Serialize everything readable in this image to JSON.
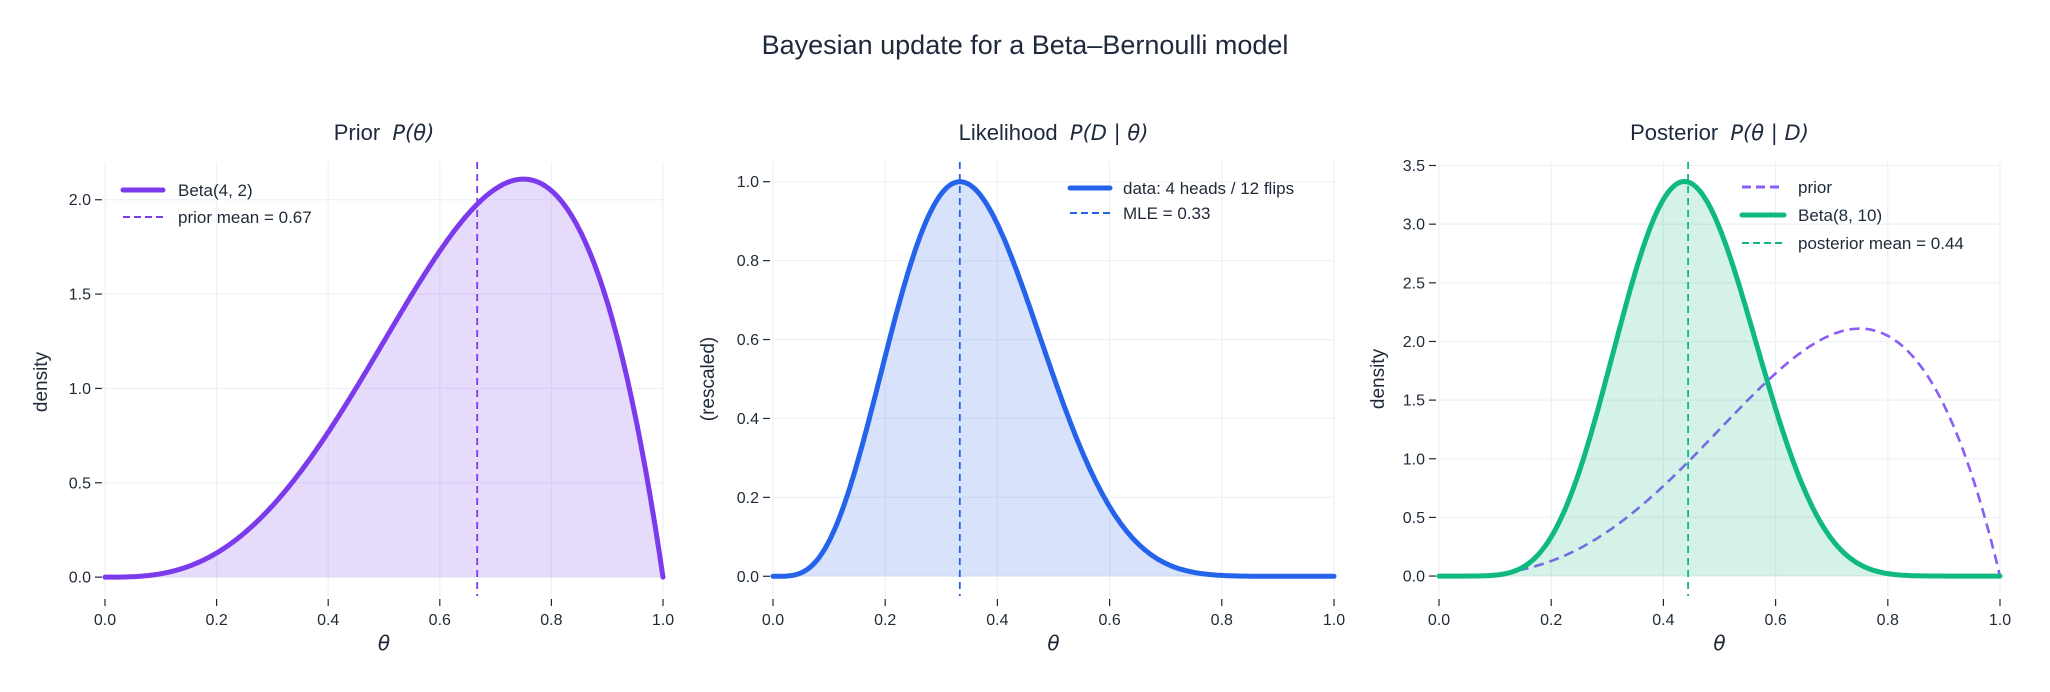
{
  "figure": {
    "suptitle": "Bayesian update for a Beta–Bernoulli model",
    "colors": {
      "prior": "#7c3aed",
      "prior_dashed": "#8b5cf6",
      "likelihood": "#2563eb",
      "posterior": "#10b981",
      "text": "#1f2937",
      "grid": "#eef2f7"
    }
  },
  "panels": [
    {
      "title_text": "Prior",
      "title_math": "P(θ)",
      "ylabel": "density",
      "xlabel": "θ",
      "legend": [
        {
          "label": "Beta(4, 2)",
          "style": "solid"
        },
        {
          "label": "prior mean = 0.67",
          "style": "dashed"
        }
      ]
    },
    {
      "title_text": "Likelihood",
      "title_math": "P(D | θ)",
      "ylabel": "(rescaled)",
      "xlabel": "θ",
      "legend": [
        {
          "label": "data: 4 heads / 12 flips",
          "style": "solid"
        },
        {
          "label": "MLE = 0.33",
          "style": "dashed"
        }
      ]
    },
    {
      "title_text": "Posterior",
      "title_math": "P(θ | D)",
      "ylabel": "density",
      "xlabel": "θ",
      "legend": [
        {
          "label": "prior",
          "style": "dashed"
        },
        {
          "label": "Beta(8, 10)",
          "style": "solid"
        },
        {
          "label": "posterior mean = 0.44",
          "style": "dashed"
        }
      ]
    }
  ],
  "chart_data": [
    {
      "type": "area",
      "title": "Prior P(θ)",
      "xlabel": "θ",
      "ylabel": "density",
      "xlim": [
        0,
        1
      ],
      "ylim": [
        -0.1,
        2.2
      ],
      "xticks": [
        "0.0",
        "0.2",
        "0.4",
        "0.6",
        "0.8",
        "1.0"
      ],
      "yticks": [
        "0.0",
        "0.5",
        "1.0",
        "1.5",
        "2.0"
      ],
      "grid": true,
      "legend_position": "upper left",
      "series": [
        {
          "name": "Beta(4, 2)",
          "distribution": "beta",
          "alpha": 4,
          "beta": 2,
          "peak": {
            "x": 0.75,
            "y": 2.11
          },
          "filled": true,
          "color": "#7c3aed"
        },
        {
          "name": "prior mean = 0.67",
          "type": "vline",
          "x": 0.667,
          "style": "dashed",
          "color": "#7c3aed"
        }
      ]
    },
    {
      "type": "area",
      "title": "Likelihood P(D | θ)",
      "xlabel": "θ",
      "ylabel": "(rescaled)",
      "xlim": [
        0,
        1
      ],
      "ylim": [
        -0.05,
        1.05
      ],
      "xticks": [
        "0.0",
        "0.2",
        "0.4",
        "0.6",
        "0.8",
        "1.0"
      ],
      "yticks": [
        "0.0",
        "0.2",
        "0.4",
        "0.6",
        "0.8",
        "1.0"
      ],
      "grid": true,
      "legend_position": "upper right",
      "series": [
        {
          "name": "data: 4 heads / 12 flips",
          "distribution": "bernoulli_likelihood",
          "heads": 4,
          "flips": 12,
          "rescaled_max": 1.0,
          "peak": {
            "x": 0.333,
            "y": 1.0
          },
          "filled": true,
          "color": "#2563eb"
        },
        {
          "name": "MLE = 0.33",
          "type": "vline",
          "x": 0.333,
          "style": "dashed",
          "color": "#2563eb"
        }
      ]
    },
    {
      "type": "area",
      "title": "Posterior P(θ | D)",
      "xlabel": "θ",
      "ylabel": "density",
      "xlim": [
        0,
        1
      ],
      "ylim": [
        -0.17,
        3.53
      ],
      "xticks": [
        "0.0",
        "0.2",
        "0.4",
        "0.6",
        "0.8",
        "1.0"
      ],
      "yticks": [
        "0.0",
        "0.5",
        "1.0",
        "1.5",
        "2.0",
        "2.5",
        "3.0",
        "3.5"
      ],
      "grid": true,
      "legend_position": "upper right",
      "series": [
        {
          "name": "prior",
          "distribution": "beta",
          "alpha": 4,
          "beta": 2,
          "peak": {
            "x": 0.75,
            "y": 2.11
          },
          "style": "dashed",
          "color": "#8b5cf6"
        },
        {
          "name": "Beta(8, 10)",
          "distribution": "beta",
          "alpha": 8,
          "beta": 10,
          "peak": {
            "x": 0.4375,
            "y": 3.37
          },
          "filled": true,
          "color": "#10b981"
        },
        {
          "name": "posterior mean = 0.44",
          "type": "vline",
          "x": 0.444,
          "style": "dashed",
          "color": "#10b981"
        }
      ]
    }
  ]
}
